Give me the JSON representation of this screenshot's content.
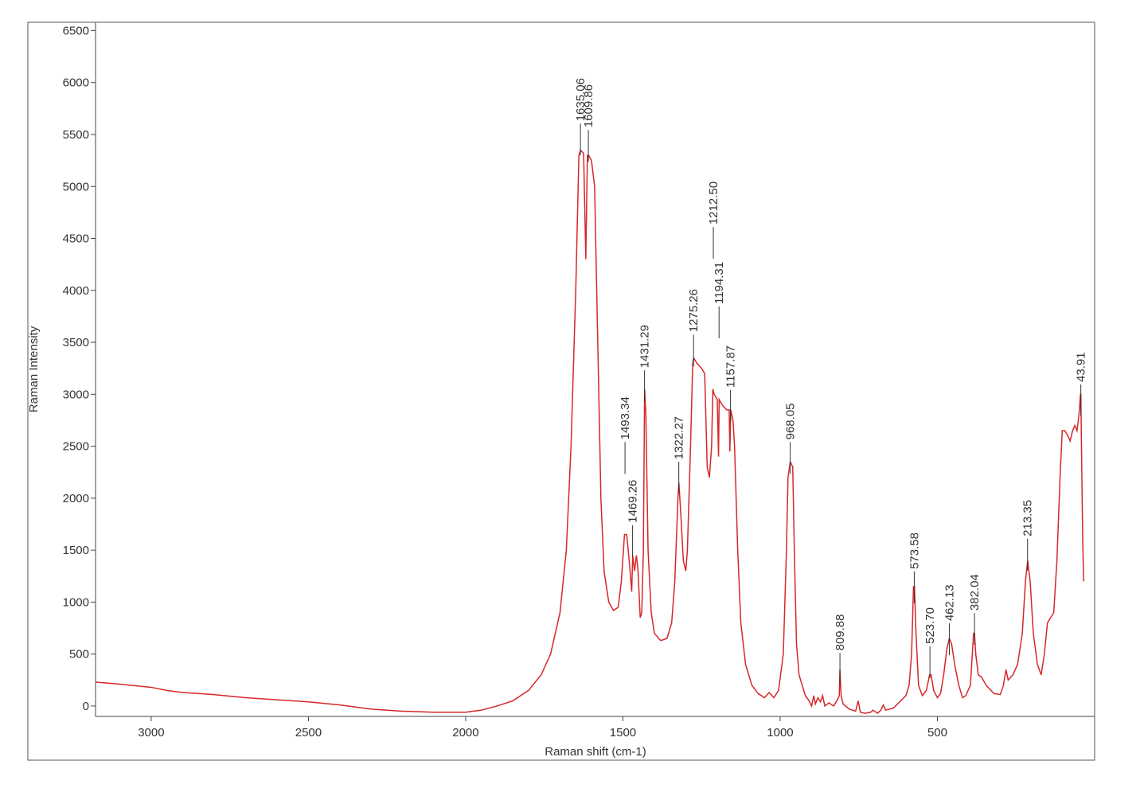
{
  "chart_data": {
    "type": "line",
    "x_label": "Raman shift (cm-1)",
    "y_label": "Raman Intensity",
    "color": "#d62728",
    "xlim": [
      3177,
      0
    ],
    "ylim": [
      -100,
      6580
    ],
    "xticks": [
      3000,
      2500,
      2000,
      1500,
      1000,
      500
    ],
    "yticks": [
      0,
      500,
      1000,
      1500,
      2000,
      2500,
      3000,
      3500,
      4000,
      4500,
      5000,
      5500,
      6000,
      6500
    ],
    "x": [
      3177,
      3100,
      3000,
      2950,
      2900,
      2800,
      2700,
      2600,
      2500,
      2400,
      2300,
      2200,
      2100,
      2000,
      1950,
      1900,
      1850,
      1800,
      1760,
      1730,
      1700,
      1680,
      1665,
      1650,
      1640,
      1635,
      1625,
      1618,
      1613,
      1609,
      1600,
      1590,
      1580,
      1570,
      1560,
      1545,
      1530,
      1515,
      1505,
      1495,
      1488,
      1480,
      1472,
      1469,
      1463,
      1457,
      1452,
      1445,
      1440,
      1435,
      1431,
      1427,
      1420,
      1410,
      1400,
      1380,
      1360,
      1345,
      1335,
      1325,
      1322,
      1315,
      1308,
      1300,
      1295,
      1285,
      1278,
      1275,
      1265,
      1250,
      1240,
      1232,
      1225,
      1218,
      1214,
      1210,
      1200,
      1196,
      1194,
      1185,
      1170,
      1162,
      1160,
      1157,
      1150,
      1145,
      1135,
      1125,
      1110,
      1090,
      1070,
      1050,
      1035,
      1020,
      1005,
      990,
      980,
      975,
      968,
      960,
      955,
      948,
      940,
      930,
      920,
      910,
      900,
      893,
      888,
      880,
      872,
      865,
      858,
      845,
      830,
      818,
      812,
      810,
      806,
      800,
      780,
      760,
      752,
      745,
      730,
      712,
      705,
      690,
      680,
      672,
      665,
      640,
      620,
      600,
      590,
      582,
      576,
      573,
      568,
      560,
      548,
      535,
      525,
      520,
      512,
      500,
      490,
      480,
      470,
      462,
      455,
      445,
      432,
      420,
      410,
      395,
      385,
      382,
      378,
      370,
      360,
      345,
      320,
      300,
      290,
      282,
      275,
      260,
      245,
      230,
      220,
      213,
      205,
      195,
      182,
      170,
      160,
      150,
      140,
      130,
      120,
      110,
      103,
      95,
      85,
      78,
      70,
      63,
      56,
      50,
      45,
      43.9,
      41,
      38,
      35
    ],
    "values": [
      230,
      210,
      180,
      150,
      130,
      110,
      80,
      60,
      40,
      10,
      -30,
      -50,
      -60,
      -60,
      -40,
      0,
      50,
      150,
      300,
      500,
      900,
      1500,
      2500,
      4000,
      5300,
      5350,
      5320,
      4300,
      5300,
      5300,
      5250,
      5000,
      3500,
      2000,
      1300,
      1000,
      920,
      950,
      1200,
      1650,
      1650,
      1400,
      1100,
      1450,
      1300,
      1450,
      1300,
      850,
      900,
      1500,
      3050,
      2800,
      1500,
      900,
      700,
      630,
      650,
      800,
      1200,
      2000,
      2150,
      1800,
      1400,
      1300,
      1500,
      2500,
      3300,
      3350,
      3300,
      3250,
      3200,
      2300,
      2200,
      2500,
      3050,
      3000,
      2950,
      2400,
      2950,
      2900,
      2850,
      2850,
      2450,
      2850,
      2750,
      2500,
      1500,
      800,
      400,
      200,
      120,
      80,
      130,
      80,
      150,
      500,
      1500,
      2200,
      2350,
      2300,
      1500,
      600,
      300,
      200,
      100,
      60,
      0,
      100,
      20,
      80,
      40,
      100,
      0,
      30,
      0,
      60,
      100,
      350,
      100,
      20,
      -30,
      -50,
      50,
      -60,
      -70,
      -60,
      -40,
      -70,
      -40,
      10,
      -40,
      -20,
      40,
      100,
      200,
      500,
      1150,
      1150,
      700,
      200,
      100,
      150,
      300,
      300,
      150,
      80,
      120,
      300,
      550,
      650,
      600,
      400,
      200,
      80,
      100,
      200,
      700,
      700,
      500,
      300,
      280,
      200,
      120,
      110,
      200,
      350,
      250,
      300,
      400,
      700,
      1200,
      1400,
      1200,
      700,
      400,
      300,
      500,
      800,
      850,
      900,
      1400,
      2200,
      2650,
      2650,
      2600,
      2550,
      2650,
      2700,
      2650,
      2800,
      3000,
      3000,
      2300,
      1600,
      1200
    ],
    "annotations": [
      {
        "x": 1635.06,
        "y": 5605,
        "label": "1635.06"
      },
      {
        "x": 1609.86,
        "y": 5545,
        "label": "1609.86"
      },
      {
        "x": 1493.34,
        "y": 2540,
        "label": "1493.34"
      },
      {
        "x": 1469.26,
        "y": 1740,
        "label": "1469.26"
      },
      {
        "x": 1431.29,
        "y": 3230,
        "label": "1431.29"
      },
      {
        "x": 1322.27,
        "y": 2350,
        "label": "1322.27"
      },
      {
        "x": 1275.26,
        "y": 3575,
        "label": "1275.26"
      },
      {
        "x": 1212.5,
        "y": 4610,
        "label": "1212.50"
      },
      {
        "x": 1194.31,
        "y": 3845,
        "label": "1194.31"
      },
      {
        "x": 1157.87,
        "y": 3040,
        "label": "1157.87"
      },
      {
        "x": 968.05,
        "y": 2540,
        "label": "968.05"
      },
      {
        "x": 809.88,
        "y": 510,
        "label": "809.88"
      },
      {
        "x": 573.58,
        "y": 1295,
        "label": "573.58"
      },
      {
        "x": 523.7,
        "y": 575,
        "label": "523.70"
      },
      {
        "x": 462.13,
        "y": 795,
        "label": "462.13"
      },
      {
        "x": 382.04,
        "y": 895,
        "label": "382.04"
      },
      {
        "x": 213.35,
        "y": 1610,
        "label": "213.35"
      },
      {
        "x": 43.91,
        "y": 3095,
        "label": "43.91"
      }
    ]
  }
}
